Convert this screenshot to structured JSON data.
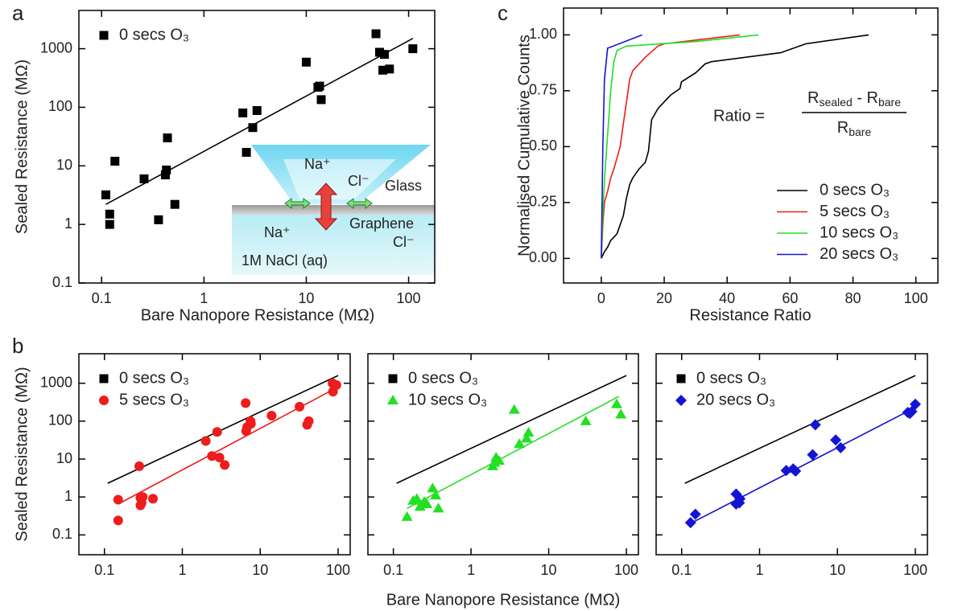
{
  "chart_data": [
    {
      "type": "scatter",
      "panel_label": "a",
      "x_label": "Bare Nanopore Resistance (MΩ)",
      "y_label": "Sealed Resistance (MΩ)",
      "xscale": "log",
      "yscale": "log",
      "xlim": [
        0.06,
        180
      ],
      "ylim": [
        0.1,
        4500
      ],
      "xticks": [
        0.1,
        1,
        10,
        100
      ],
      "yticks": [
        0.1,
        1,
        10,
        100,
        1000
      ],
      "legend": "upper left",
      "series": [
        {
          "name": "0 secs O₃",
          "color": "#000000",
          "marker": "square",
          "x": [
            0.11,
            0.12,
            0.12,
            0.135,
            0.26,
            0.36,
            0.42,
            0.43,
            0.44,
            0.52,
            2.4,
            2.6,
            3.0,
            3.3,
            10,
            13,
            13.5,
            14,
            48,
            52,
            58,
            56,
            65,
            110
          ],
          "values": [
            3.2,
            1.0,
            1.5,
            12,
            6,
            1.2,
            7,
            8.5,
            30,
            2.2,
            80,
            17,
            45,
            88,
            590,
            220,
            230,
            135,
            1800,
            870,
            800,
            430,
            450,
            1000
          ]
        }
      ],
      "fits": [
        {
          "color": "#000000",
          "x": [
            0.11,
            110
          ],
          "values": [
            2.2,
            1500
          ]
        }
      ],
      "inset": {
        "ion_upper_na": "Na⁺",
        "ion_upper_cl": "Cl⁻",
        "glass": "Glass",
        "graphene": "Graphene",
        "ion_lower_na": "Na⁺",
        "ion_lower_cl": "Cl⁻",
        "solution": "1M NaCl (aq)"
      }
    },
    {
      "type": "line",
      "panel_label": "c",
      "x_label": "Resistance Ratio",
      "y_label": "Normalised Cumulative Counts",
      "xlim": [
        -12,
        107
      ],
      "ylim": [
        -0.11,
        1.12
      ],
      "xticks": [
        0,
        20,
        40,
        60,
        80,
        100
      ],
      "yticks": [
        {
          "value": 0,
          "label": "0.00"
        },
        {
          "value": 0.25,
          "label": "0.25"
        },
        {
          "value": 0.5,
          "label": "0.50"
        },
        {
          "value": 0.75,
          "label": "0.75"
        },
        {
          "value": 1,
          "label": "1.00"
        }
      ],
      "legend": "lower right",
      "annotation": {
        "lhs": "Ratio =",
        "num": [
          "R",
          "sealed",
          " - R",
          "bare"
        ],
        "den": [
          "R",
          "bare"
        ]
      },
      "series": [
        {
          "name": "0 secs O₃",
          "color": "#000000",
          "x": [
            0,
            1,
            2,
            3,
            5,
            6,
            7,
            8,
            9,
            10,
            12,
            14,
            15,
            16,
            18,
            22,
            25,
            25.5,
            30,
            33,
            35,
            57,
            65,
            85
          ],
          "values": [
            0,
            0.03,
            0.05,
            0.08,
            0.11,
            0.15,
            0.19,
            0.27,
            0.33,
            0.36,
            0.4,
            0.43,
            0.48,
            0.62,
            0.67,
            0.73,
            0.76,
            0.79,
            0.83,
            0.87,
            0.88,
            0.92,
            0.96,
            1.0
          ]
        },
        {
          "name": "5 secs O₃",
          "color": "#ee1c1c",
          "x": [
            0,
            0.5,
            1,
            2,
            3,
            4,
            5,
            6,
            7,
            8,
            9,
            10,
            14,
            18,
            20,
            44
          ],
          "values": [
            0,
            0.15,
            0.25,
            0.3,
            0.36,
            0.4,
            0.45,
            0.5,
            0.6,
            0.7,
            0.8,
            0.84,
            0.9,
            0.95,
            0.96,
            1.0
          ]
        },
        {
          "name": "10 secs O₃",
          "color": "#22e022",
          "x": [
            0,
            0.5,
            1,
            2,
            3,
            4,
            5,
            8,
            30,
            50
          ],
          "values": [
            0,
            0.2,
            0.35,
            0.55,
            0.75,
            0.88,
            0.93,
            0.95,
            0.97,
            1.0
          ]
        },
        {
          "name": "20 secs O₃",
          "color": "#1414d4",
          "x": [
            0,
            0.5,
            1,
            2,
            13
          ],
          "values": [
            0,
            0.5,
            0.8,
            0.94,
            1.0
          ]
        }
      ]
    },
    {
      "type": "scatter",
      "panel_label": "b",
      "y_label": "Sealed Resistance (MΩ)",
      "xscale": "log",
      "yscale": "log",
      "xlim": [
        0.047,
        143
      ],
      "ylim": [
        0.03,
        6000
      ],
      "xticks": [
        0.1,
        1,
        10,
        100
      ],
      "yticks": [
        0.1,
        1,
        10,
        100,
        1000
      ],
      "legend": "upper left",
      "fits": [
        {
          "name": "0 secs O₃",
          "marker": "square",
          "color": "#000000",
          "x": [
            0.11,
            100
          ],
          "values": [
            2.3,
            1600
          ]
        },
        {
          "color": "#ee1c1c",
          "x": [
            0.15,
            100
          ],
          "values": [
            0.65,
            800
          ]
        }
      ],
      "series": [
        {
          "name": "5 secs O₃",
          "color": "#ee1c1c",
          "marker": "circle",
          "x": [
            0.15,
            0.15,
            0.28,
            0.29,
            0.29,
            0.3,
            0.31,
            0.42,
            2.0,
            2.4,
            2.8,
            3.0,
            3.5,
            6.5,
            6.6,
            6.8,
            7.5,
            7.6,
            14,
            32,
            40,
            42,
            85,
            86,
            95
          ],
          "values": [
            0.85,
            0.24,
            6.5,
            0.95,
            0.6,
            0.7,
            1.0,
            0.9,
            30,
            12,
            52,
            11,
            7,
            300,
            55,
            70,
            100,
            85,
            140,
            240,
            80,
            100,
            1000,
            600,
            900
          ]
        }
      ]
    },
    {
      "type": "scatter",
      "x_label": "Bare Nanopore Resistance (MΩ)",
      "xscale": "log",
      "yscale": "log",
      "xlim": [
        0.047,
        143
      ],
      "ylim": [
        0.03,
        6000
      ],
      "xticks": [
        0.1,
        1,
        10,
        100
      ],
      "yticks": [
        0.1,
        1,
        10,
        100,
        1000
      ],
      "ytick_labels": false,
      "legend": "upper left",
      "fits": [
        {
          "name": "0 secs O₃",
          "marker": "square",
          "color": "#000000",
          "x": [
            0.11,
            100
          ],
          "values": [
            2.3,
            1600
          ]
        },
        {
          "color": "#22e022",
          "x": [
            0.15,
            80
          ],
          "values": [
            0.5,
            450
          ]
        }
      ],
      "series": [
        {
          "name": "10 secs O₃",
          "color": "#22e022",
          "marker": "triangle",
          "x": [
            0.15,
            0.18,
            0.2,
            0.22,
            0.25,
            0.27,
            0.32,
            0.35,
            0.38,
            1.9,
            2.0,
            2.1,
            2.3,
            3.6,
            4.2,
            5.2,
            5.5,
            30,
            75,
            85
          ],
          "values": [
            0.3,
            0.8,
            0.9,
            0.55,
            0.75,
            0.65,
            1.7,
            1.1,
            0.5,
            6.5,
            8,
            11,
            9,
            200,
            25,
            35,
            50,
            100,
            280,
            150
          ]
        }
      ]
    },
    {
      "type": "scatter",
      "xscale": "log",
      "yscale": "log",
      "xlim": [
        0.047,
        143
      ],
      "ylim": [
        0.03,
        6000
      ],
      "xticks": [
        0.1,
        1,
        10,
        100
      ],
      "yticks": [
        0.1,
        1,
        10,
        100,
        1000
      ],
      "ytick_labels": false,
      "legend": "upper left",
      "fits": [
        {
          "name": "0 secs O₃",
          "marker": "square",
          "color": "#000000",
          "x": [
            0.11,
            100
          ],
          "values": [
            2.3,
            1600
          ]
        },
        {
          "color": "#1414d4",
          "x": [
            0.13,
            100
          ],
          "values": [
            0.2,
            230
          ]
        }
      ],
      "series": [
        {
          "name": "20 secs O₃",
          "color": "#1414d4",
          "marker": "diamond",
          "x": [
            0.13,
            0.15,
            0.5,
            0.5,
            0.55,
            0.56,
            2.2,
            2.7,
            2.9,
            5.2,
            4.8,
            9.5,
            11,
            80,
            85,
            90,
            100
          ],
          "values": [
            0.21,
            0.35,
            1.2,
            0.65,
            0.7,
            0.9,
            5,
            5.5,
            4.8,
            80,
            13,
            32,
            20,
            170,
            160,
            180,
            280
          ]
        }
      ]
    }
  ]
}
